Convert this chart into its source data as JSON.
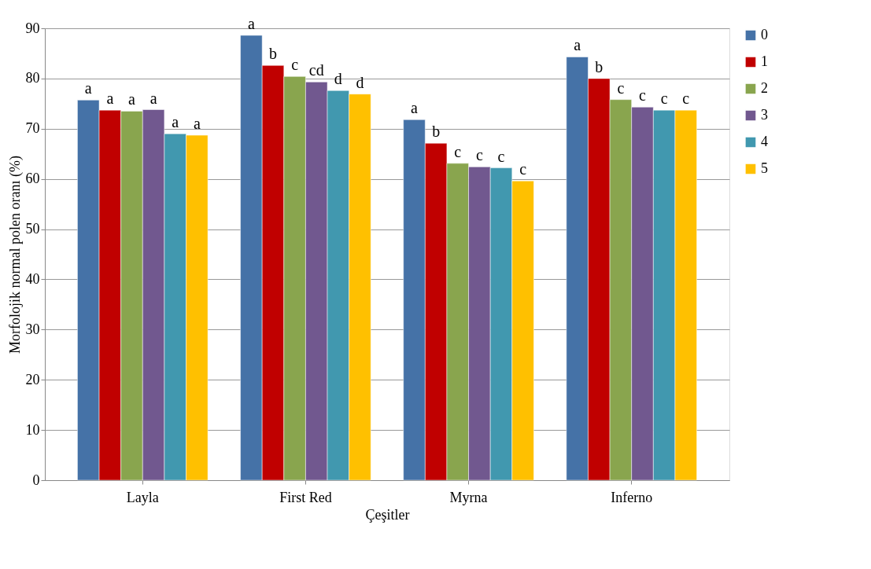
{
  "chart_data": {
    "type": "bar",
    "xlabel": "Çeşitler",
    "ylabel": "Morfolojik normal polen oranı (%)",
    "categories": [
      "Layla",
      "First Red",
      "Myrna",
      "Inferno"
    ],
    "series": [
      {
        "name": "0",
        "color": "#4572a7",
        "values": [
          75.7,
          88.6,
          71.8,
          84.3
        ],
        "value_labels": [
          "a",
          "a",
          "a",
          "a"
        ]
      },
      {
        "name": "1",
        "color": "#c00000",
        "values": [
          73.7,
          82.6,
          67.1,
          80.0
        ],
        "value_labels": [
          "a",
          "b",
          "b",
          "b"
        ]
      },
      {
        "name": "2",
        "color": "#89a54e",
        "values": [
          73.5,
          80.4,
          63.1,
          75.8
        ],
        "value_labels": [
          "a",
          "c",
          "c",
          "c"
        ]
      },
      {
        "name": "3",
        "color": "#71588f",
        "values": [
          73.8,
          79.3,
          62.4,
          74.3
        ],
        "value_labels": [
          "a",
          "cd",
          "c",
          "c"
        ]
      },
      {
        "name": "4",
        "color": "#4198af",
        "values": [
          69.0,
          77.6,
          62.2,
          73.7
        ],
        "value_labels": [
          "a",
          "d",
          "c",
          "c"
        ]
      },
      {
        "name": "5",
        "color": "#ffc000",
        "values": [
          68.7,
          76.9,
          59.6,
          73.7
        ],
        "value_labels": [
          "a",
          "d",
          "c",
          "c"
        ]
      }
    ],
    "ylim": [
      0,
      90
    ],
    "yticks": [
      0,
      10,
      20,
      30,
      40,
      50,
      60,
      70,
      80,
      90
    ],
    "grid": "y",
    "legend": "right"
  }
}
